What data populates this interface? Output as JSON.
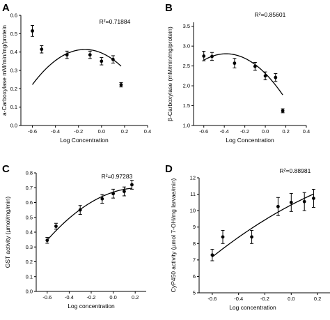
{
  "chart_data": [
    {
      "panel": "A",
      "type": "scatter",
      "r2": "R²=0.71884",
      "xlabel": "Log Concentration",
      "ylabel": "a-Carboxylase mM/min/mg/protein",
      "xlim": [
        -0.7,
        0.4
      ],
      "ylim": [
        0.0,
        0.6
      ],
      "x_ticks": [
        "-0.6",
        "-0.4",
        "-0.2",
        "0.0",
        "0.2",
        "0.4"
      ],
      "x_tick_values": [
        -0.6,
        -0.4,
        -0.2,
        0.0,
        0.2,
        0.4
      ],
      "y_ticks": [
        "0.0",
        "0.1",
        "0.2",
        "0.3",
        "0.4",
        "0.5",
        "0.6"
      ],
      "y_tick_values": [
        0.0,
        0.1,
        0.2,
        0.3,
        0.4,
        0.5,
        0.6
      ],
      "points": [
        {
          "x": -0.6,
          "y": 0.515,
          "err": 0.03
        },
        {
          "x": -0.52,
          "y": 0.415,
          "err": 0.02
        },
        {
          "x": -0.3,
          "y": 0.385,
          "err": 0.02
        },
        {
          "x": -0.1,
          "y": 0.385,
          "err": 0.02
        },
        {
          "x": 0.0,
          "y": 0.35,
          "err": 0.02
        },
        {
          "x": 0.1,
          "y": 0.36,
          "err": 0.02
        },
        {
          "x": 0.17,
          "y": 0.222,
          "err": 0.012
        }
      ],
      "fit": {
        "a": 0.395,
        "b": -0.265,
        "c": -0.92,
        "x_range": [
          -0.6,
          0.17
        ]
      }
    },
    {
      "panel": "B",
      "type": "scatter",
      "r2": "R²=0.85601",
      "xlabel": "Log Concentration",
      "ylabel": "β-Carboxylase (mM/min/mg/protein)",
      "xlim": [
        -0.7,
        0.4
      ],
      "ylim": [
        1.0,
        3.6
      ],
      "x_ticks": [
        "-0.6",
        "-0.4",
        "-0.2",
        "0.0",
        "0.2",
        "0.4"
      ],
      "x_tick_values": [
        -0.6,
        -0.4,
        -0.2,
        0.0,
        0.2,
        0.4
      ],
      "y_ticks": [
        "1.0",
        "1.5",
        "2.0",
        "2.5",
        "3.0",
        "3.5"
      ],
      "y_tick_values": [
        1.0,
        1.5,
        2.0,
        2.5,
        3.0,
        3.5
      ],
      "points": [
        {
          "x": -0.6,
          "y": 2.75,
          "err": 0.12
        },
        {
          "x": -0.52,
          "y": 2.74,
          "err": 0.1
        },
        {
          "x": -0.3,
          "y": 2.57,
          "err": 0.12
        },
        {
          "x": -0.1,
          "y": 2.49,
          "err": 0.1
        },
        {
          "x": 0.0,
          "y": 2.25,
          "err": 0.1
        },
        {
          "x": 0.1,
          "y": 2.21,
          "err": 0.1
        },
        {
          "x": 0.17,
          "y": 1.37,
          "err": 0.05
        }
      ],
      "fit": {
        "a": 2.31,
        "b": -2.6,
        "c": -3.4,
        "x_range": [
          -0.6,
          0.17
        ]
      }
    },
    {
      "panel": "C",
      "type": "scatter",
      "r2": "R²=0.97283",
      "xlabel": "Log concentration",
      "ylabel": "GST activity (µmol/mg/min)",
      "xlim": [
        -0.7,
        0.3
      ],
      "ylim": [
        0.0,
        0.8
      ],
      "x_ticks": [
        "-0.6",
        "-0.4",
        "-0.2",
        "0.0",
        "0.2"
      ],
      "x_tick_values": [
        -0.6,
        -0.4,
        -0.2,
        0.0,
        0.2
      ],
      "y_ticks": [
        "0.0",
        "0.1",
        "0.2",
        "0.3",
        "0.4",
        "0.5",
        "0.6",
        "0.7",
        "0.8"
      ],
      "y_tick_values": [
        0.0,
        0.1,
        0.2,
        0.3,
        0.4,
        0.5,
        0.6,
        0.7,
        0.8
      ],
      "points": [
        {
          "x": -0.6,
          "y": 0.345,
          "err": 0.02
        },
        {
          "x": -0.52,
          "y": 0.44,
          "err": 0.02
        },
        {
          "x": -0.3,
          "y": 0.55,
          "err": 0.03
        },
        {
          "x": -0.1,
          "y": 0.625,
          "err": 0.03
        },
        {
          "x": 0.0,
          "y": 0.66,
          "err": 0.03
        },
        {
          "x": 0.1,
          "y": 0.675,
          "err": 0.03
        },
        {
          "x": 0.17,
          "y": 0.72,
          "err": 0.03
        }
      ],
      "fit": {
        "a": 0.67,
        "b": 0.24,
        "c": -0.5,
        "x_range": [
          -0.6,
          0.17
        ]
      }
    },
    {
      "panel": "D",
      "type": "scatter",
      "r2": "R²=0.88981",
      "xlabel": "Log concentration",
      "ylabel": "CyP450 activity (µmol 7-OH/mg larvae/min)",
      "xlim": [
        -0.7,
        0.3
      ],
      "ylim": [
        5,
        12
      ],
      "x_ticks": [
        "-0.6",
        "-0.4",
        "-0.2",
        "0.0",
        "0.2"
      ],
      "x_tick_values": [
        -0.6,
        -0.4,
        -0.2,
        0.0,
        0.2
      ],
      "y_ticks": [
        "5",
        "6",
        "7",
        "8",
        "9",
        "10",
        "11",
        "12"
      ],
      "y_tick_values": [
        5,
        6,
        7,
        8,
        9,
        10,
        11,
        12
      ],
      "points": [
        {
          "x": -0.6,
          "y": 7.3,
          "err": 0.35
        },
        {
          "x": -0.52,
          "y": 8.4,
          "err": 0.4
        },
        {
          "x": -0.3,
          "y": 8.4,
          "err": 0.4
        },
        {
          "x": -0.1,
          "y": 10.25,
          "err": 0.55
        },
        {
          "x": 0.0,
          "y": 10.5,
          "err": 0.55
        },
        {
          "x": 0.1,
          "y": 10.55,
          "err": 0.55
        },
        {
          "x": 0.17,
          "y": 10.75,
          "err": 0.55
        }
      ],
      "fit": {
        "a": 10.35,
        "b": 4.2,
        "c": -1.8,
        "x_range": [
          -0.6,
          0.17
        ]
      }
    }
  ]
}
